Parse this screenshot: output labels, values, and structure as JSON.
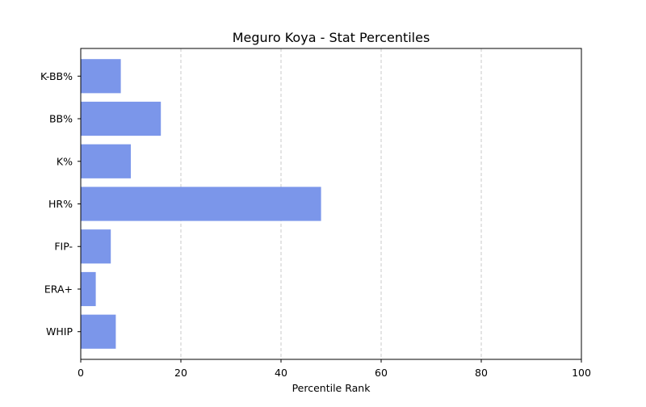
{
  "chart_data": {
    "type": "bar",
    "orientation": "horizontal",
    "title": "Meguro Koya - Stat Percentiles",
    "xlabel": "Percentile Rank",
    "ylabel": "",
    "categories": [
      "K-BB%",
      "BB%",
      "K%",
      "HR%",
      "FIP-",
      "ERA+",
      "WHIP"
    ],
    "values": [
      8,
      16,
      10,
      48,
      6,
      3,
      7
    ],
    "xlim": [
      0,
      100
    ],
    "xticks": [
      0,
      20,
      40,
      60,
      80,
      100
    ],
    "grid": "x-dashed",
    "legend": "none",
    "colors": {
      "bar": "#7b96ea",
      "grid": "#c8c8c8",
      "axis": "#000000"
    }
  }
}
